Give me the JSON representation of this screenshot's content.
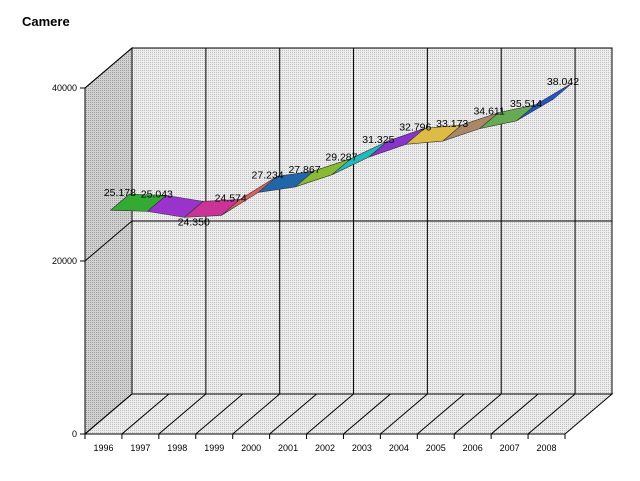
{
  "chart_data": {
    "type": "area",
    "title": "Camere",
    "xlabel": "",
    "ylabel": "",
    "categories": [
      "1996",
      "1997",
      "1998",
      "1999",
      "2000",
      "2001",
      "2002",
      "2003",
      "2004",
      "2005",
      "2006",
      "2007",
      "2008"
    ],
    "values": [
      25178,
      25043,
      24350,
      24574,
      27234,
      27867,
      29287,
      31325,
      32796,
      33173,
      34611,
      35514,
      38042
    ],
    "data_labels": [
      "25.178",
      "25.043",
      "24.350",
      "24.574",
      "27.234",
      "27.867",
      "29.287",
      "31.325",
      "32.796",
      "33.173",
      "34.611",
      "35.514",
      "38.042"
    ],
    "y_ticks": [
      "0",
      "20000",
      "40000"
    ],
    "ylim": [
      0,
      40000
    ],
    "grid": true,
    "three_d": true,
    "segment_colors": [
      "#33aa33",
      "#9933cc",
      "#cc3399",
      "#e06060",
      "#2266aa",
      "#88bb33",
      "#22bbbb",
      "#8833cc",
      "#ddbb44",
      "#aa8866",
      "#66aa55",
      "#2255cc"
    ]
  }
}
